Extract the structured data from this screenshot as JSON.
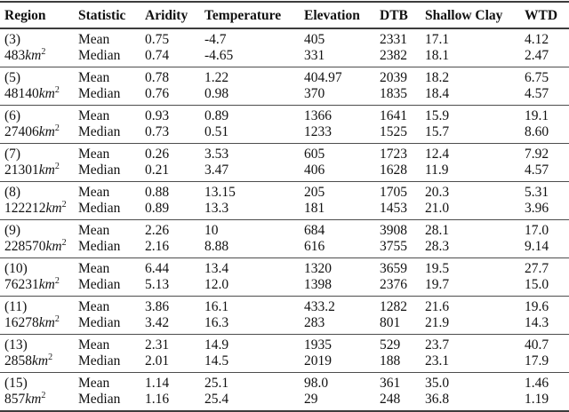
{
  "table": {
    "columns": [
      "Region",
      "Statistic",
      "Aridity",
      "Temperature",
      "Elevation",
      "DTB",
      "Shallow Clay",
      "WTD"
    ],
    "value_keys": [
      "aridity",
      "temperature",
      "elevation",
      "dtb",
      "shallow-clay",
      "wtd"
    ],
    "area_unit": "km",
    "area_exponent": "2",
    "statistic_labels": {
      "mean": "Mean",
      "median": "Median"
    },
    "rule_color": "#3c3c3c",
    "text_color": "#111111",
    "groups": [
      {
        "region": "(3)",
        "area": "483",
        "mean": [
          "0.75",
          "-4.7",
          "405",
          "2331",
          "17.1",
          "4.12"
        ],
        "median": [
          "0.74",
          "-4.65",
          "331",
          "2382",
          "18.1",
          "2.47"
        ]
      },
      {
        "region": "(5)",
        "area": "48140",
        "mean": [
          "0.78",
          "1.22",
          "404.97",
          "2039",
          "18.2",
          "6.75"
        ],
        "median": [
          "0.76",
          "0.98",
          "370",
          "1835",
          "18.4",
          "4.57"
        ]
      },
      {
        "region": "(6)",
        "area": "27406",
        "mean": [
          "0.93",
          "0.89",
          "1366",
          "1641",
          "15.9",
          "19.1"
        ],
        "median": [
          "0.73",
          "0.51",
          "1233",
          "1525",
          "15.7",
          "8.60"
        ]
      },
      {
        "region": "(7)",
        "area": "21301",
        "mean": [
          "0.26",
          "3.53",
          "605",
          "1723",
          "12.4",
          "7.92"
        ],
        "median": [
          "0.21",
          "3.47",
          "406",
          "1628",
          "11.9",
          "4.57"
        ]
      },
      {
        "region": "(8)",
        "area": "122212",
        "mean": [
          "0.88",
          "13.15",
          "205",
          "1705",
          "20.3",
          "5.31"
        ],
        "median": [
          "0.89",
          "13.3",
          "181",
          "1453",
          "21.0",
          "3.96"
        ]
      },
      {
        "region": "(9)",
        "area": "228570",
        "mean": [
          "2.26",
          "10",
          "684",
          "3908",
          "28.1",
          "17.0"
        ],
        "median": [
          "2.16",
          "8.88",
          "616",
          "3755",
          "28.3",
          "9.14"
        ]
      },
      {
        "region": "(10)",
        "area": "76231",
        "mean": [
          "6.44",
          "13.4",
          "1320",
          "3659",
          "19.5",
          "27.7"
        ],
        "median": [
          "5.13",
          "12.0",
          "1398",
          "2376",
          "19.7",
          "15.0"
        ]
      },
      {
        "region": "(11)",
        "area": "16278",
        "mean": [
          "3.86",
          "16.1",
          "433.2",
          "1282",
          "21.6",
          "19.6"
        ],
        "median": [
          "3.42",
          "16.3",
          "283",
          "801",
          "21.9",
          "14.3"
        ]
      },
      {
        "region": "(13)",
        "area": "2858",
        "mean": [
          "2.31",
          "14.9",
          "1935",
          "529",
          "23.7",
          "40.7"
        ],
        "median": [
          "2.01",
          "14.5",
          "2019",
          "188",
          "23.1",
          "17.9"
        ]
      },
      {
        "region": "(15)",
        "area": "857",
        "mean": [
          "1.14",
          "25.1",
          "98.0",
          "361",
          "35.0",
          "1.46"
        ],
        "median": [
          "1.16",
          "25.4",
          "29",
          "248",
          "36.8",
          "1.19"
        ]
      }
    ]
  }
}
